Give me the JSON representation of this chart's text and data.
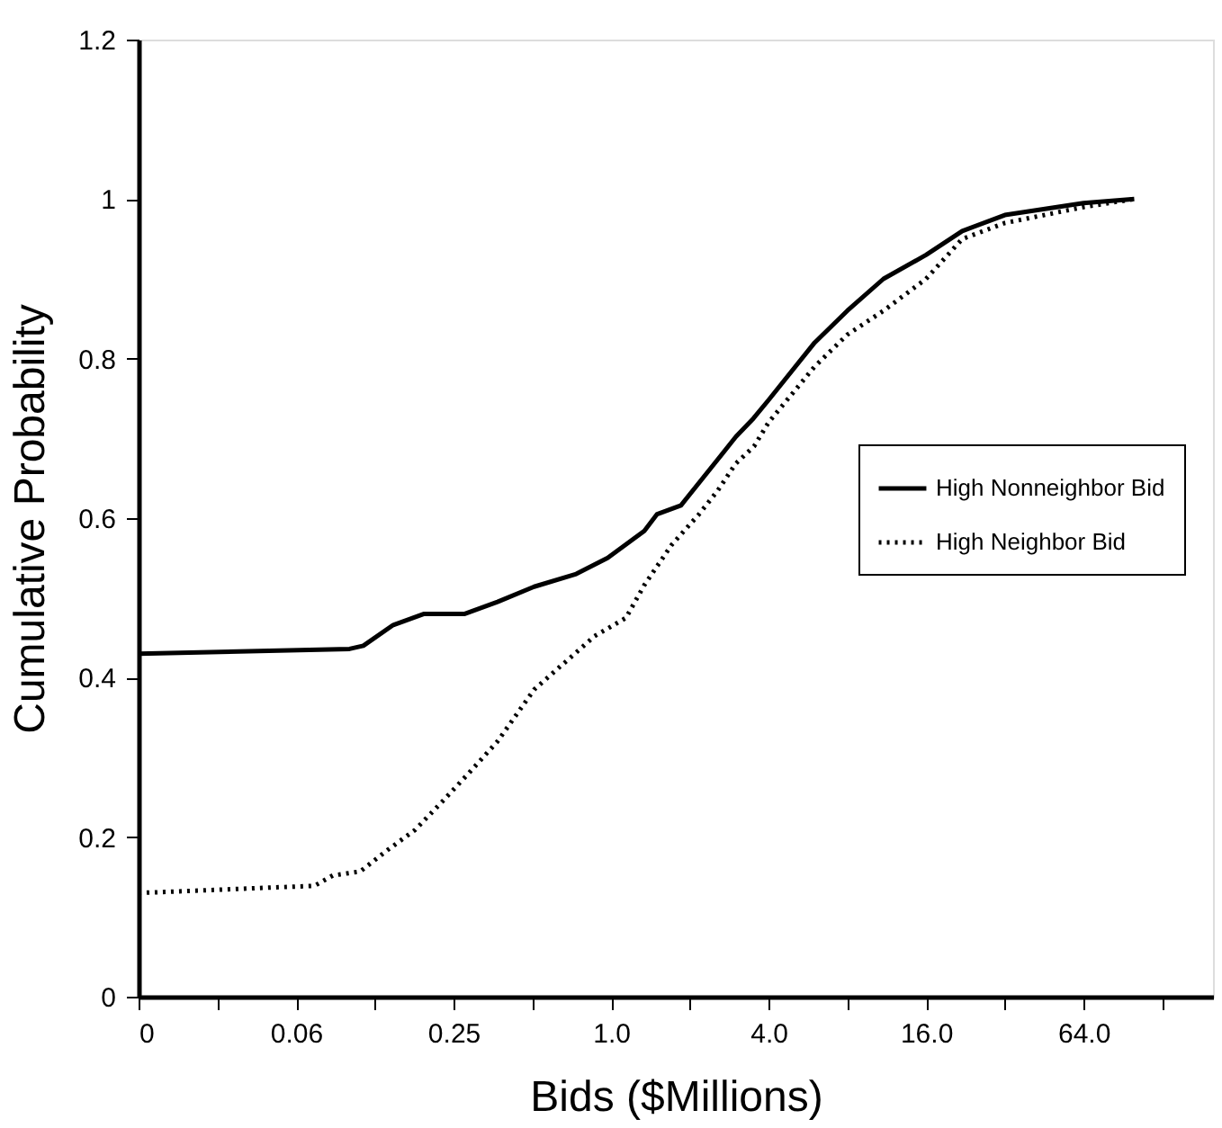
{
  "chart_data": {
    "type": "line",
    "xlabel": "Bids ($Millions)",
    "ylabel": "Cumulative Probability",
    "log": "x",
    "xlim": [
      0.015625,
      200
    ],
    "xticks": [
      {
        "value": 0.015625,
        "label": "0"
      },
      {
        "value": 0.03125,
        "label": null
      },
      {
        "value": 0.0625,
        "label": "0.06"
      },
      {
        "value": 0.125,
        "label": null
      },
      {
        "value": 0.25,
        "label": "0.25"
      },
      {
        "value": 0.5,
        "label": null
      },
      {
        "value": 1,
        "label": "1.0"
      },
      {
        "value": 2,
        "label": null
      },
      {
        "value": 4,
        "label": "4.0"
      },
      {
        "value": 8,
        "label": null
      },
      {
        "value": 16,
        "label": "16.0"
      },
      {
        "value": 32,
        "label": null
      },
      {
        "value": 64,
        "label": "64.0"
      },
      {
        "value": 128,
        "label": null
      }
    ],
    "ylim": [
      0,
      1.2
    ],
    "yticks": [
      0,
      0.2,
      0.4,
      0.6,
      0.8,
      1,
      1.2
    ],
    "grid": false,
    "legend": "right",
    "marker": "none",
    "series": [
      {
        "name": "High Nonneighbor Bid",
        "color": "#000000",
        "line_style": "solid",
        "x": [
          0.015625,
          0.1,
          0.113,
          0.147,
          0.193,
          0.276,
          0.368,
          0.508,
          0.736,
          0.97,
          1.34,
          1.5,
          1.85,
          2.55,
          3.0,
          3.5,
          4.0,
          6,
          8,
          11,
          16,
          22,
          32,
          64,
          100
        ],
        "values": [
          0.43,
          0.436,
          0.44,
          0.466,
          0.48,
          0.48,
          0.495,
          0.514,
          0.53,
          0.55,
          0.584,
          0.605,
          0.616,
          0.673,
          0.702,
          0.725,
          0.748,
          0.82,
          0.86,
          0.9,
          0.93,
          0.96,
          0.98,
          0.995,
          1.0
        ]
      },
      {
        "name": "High Neighbor Bid",
        "color": "#000000",
        "line_style": "dotted",
        "x": [
          0.015625,
          0.0735,
          0.0864,
          0.11,
          0.14,
          0.178,
          0.227,
          0.289,
          0.368,
          0.508,
          0.865,
          1.14,
          1.34,
          1.7,
          2.17,
          2.55,
          2.99,
          3.52,
          4.0,
          6,
          8,
          11,
          16,
          22,
          32,
          64,
          100
        ],
        "values": [
          0.13,
          0.139,
          0.152,
          0.157,
          0.184,
          0.209,
          0.245,
          0.282,
          0.32,
          0.385,
          0.452,
          0.475,
          0.516,
          0.566,
          0.605,
          0.634,
          0.668,
          0.69,
          0.72,
          0.79,
          0.83,
          0.86,
          0.9,
          0.95,
          0.97,
          0.99,
          1.0
        ]
      }
    ]
  }
}
